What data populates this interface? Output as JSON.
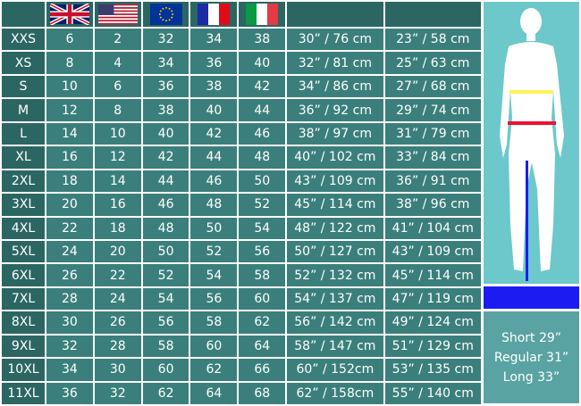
{
  "header": {
    "flags": [
      {
        "icon": "uk-flag-icon"
      },
      {
        "icon": "us-flag-icon"
      },
      {
        "icon": "eu-flag-icon"
      },
      {
        "icon": "france-flag-icon"
      },
      {
        "icon": "italy-flag-icon"
      }
    ],
    "colors": {
      "waist": "#fff155",
      "hip": "#ee1133",
      "inseam": "#1c1cf2"
    }
  },
  "rows": [
    [
      "XXS",
      "6",
      "2",
      "32",
      "34",
      "38",
      "30” / 76 cm",
      "23” / 58 cm"
    ],
    [
      "XS",
      "8",
      "4",
      "34",
      "36",
      "40",
      "32” / 81 cm",
      "25” / 63 cm"
    ],
    [
      "S",
      "10",
      "6",
      "36",
      "38",
      "42",
      "34” / 86 cm",
      "27” / 68 cm"
    ],
    [
      "M",
      "12",
      "8",
      "38",
      "40",
      "44",
      "36” / 92 cm",
      "29” / 74 cm"
    ],
    [
      "L",
      "14",
      "10",
      "40",
      "42",
      "46",
      "38” / 97 cm",
      "31” / 79 cm"
    ],
    [
      "XL",
      "16",
      "12",
      "42",
      "44",
      "48",
      "40” / 102 cm",
      "33” / 84 cm"
    ],
    [
      "2XL",
      "18",
      "14",
      "44",
      "46",
      "50",
      "43” / 109 cm",
      "36” / 91 cm"
    ],
    [
      "3XL",
      "20",
      "16",
      "46",
      "48",
      "52",
      "45” / 114 cm",
      "38” / 96 cm"
    ],
    [
      "4XL",
      "22",
      "18",
      "48",
      "50",
      "54",
      "48” / 122 cm",
      "41” / 104 cm"
    ],
    [
      "5XL",
      "24",
      "20",
      "50",
      "52",
      "56",
      "50” / 127 cm",
      "43” / 109 cm"
    ],
    [
      "6XL",
      "26",
      "22",
      "52",
      "54",
      "58",
      "52” / 132 cm",
      "45” / 114 cm"
    ],
    [
      "7XL",
      "28",
      "24",
      "54",
      "56",
      "60",
      "54” / 137 cm",
      "47” / 119 cm"
    ],
    [
      "8XL",
      "30",
      "26",
      "56",
      "58",
      "62",
      "56” / 142 cm",
      "49” / 124 cm"
    ],
    [
      "9XL",
      "32",
      "28",
      "58",
      "60",
      "64",
      "58” / 147 cm",
      "51” / 129 cm"
    ],
    [
      "10XL",
      "34",
      "30",
      "60",
      "62",
      "66",
      "60” / 152cm",
      "53” / 135 cm"
    ],
    [
      "11XL",
      "36",
      "32",
      "62",
      "64",
      "68",
      "62” / 158cm",
      "55” / 140 cm"
    ]
  ],
  "lengths": [
    "Short 29”",
    "Regular 31”",
    "Long 33”"
  ]
}
